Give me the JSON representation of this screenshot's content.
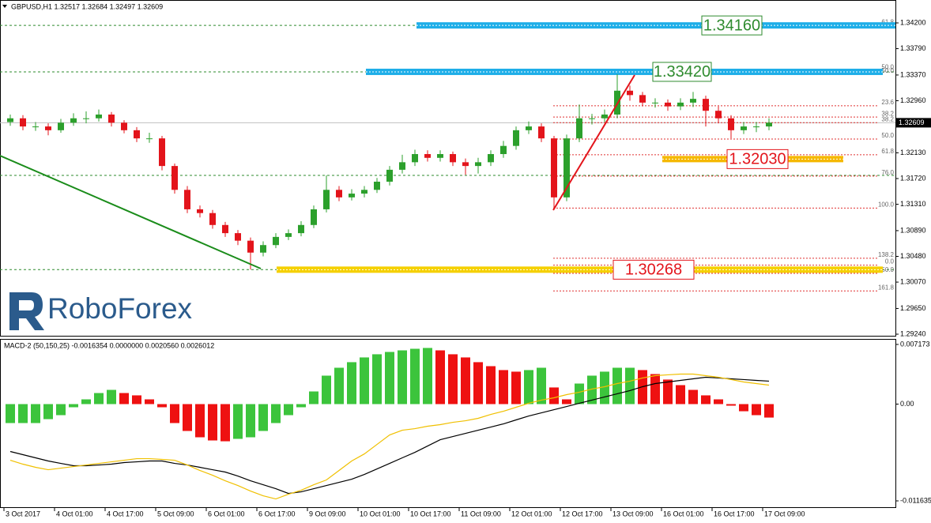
{
  "chart_data": [
    {
      "type": "candlestick",
      "title": "GBPUSD,H1  1.32517 1.32684 1.32497 1.32609",
      "watermark": "RoboForex",
      "x": [
        "3 Oct 2017",
        null,
        null,
        null,
        "4 Oct 01:00",
        null,
        null,
        null,
        "4 Oct 17:00",
        null,
        null,
        null,
        "5 Oct 09:00",
        null,
        null,
        null,
        "6 Oct 01:00",
        null,
        null,
        null,
        "6 Oct 17:00",
        null,
        null,
        null,
        "9 Oct 09:00",
        null,
        null,
        null,
        "10 Oct 01:00",
        null,
        null,
        null,
        "10 Oct 17:00",
        null,
        null,
        null,
        "11 Oct 09:00",
        null,
        null,
        null,
        "12 Oct 01:00",
        null,
        null,
        null,
        "12 Oct 17:00",
        null,
        null,
        null,
        "13 Oct 09:00",
        null,
        null,
        null,
        "16 Oct 01:00",
        null,
        null,
        null,
        "16 Oct 17:00",
        null,
        null,
        null,
        "17 Oct 09:00"
      ],
      "open": [
        1.3262,
        1.3268,
        1.3255,
        1.3255,
        1.3249,
        1.3261,
        1.3268,
        1.3268,
        1.3274,
        1.3261,
        1.3249,
        1.3236,
        1.3236,
        1.3192,
        1.3154,
        1.3123,
        1.3117,
        1.3098,
        1.3085,
        1.3073,
        1.3054,
        1.3066,
        1.3079,
        1.3085,
        1.3098,
        1.3123,
        1.3154,
        1.3142,
        1.3148,
        1.3154,
        1.3167,
        1.3186,
        1.3198,
        1.3211,
        1.3205,
        1.3211,
        1.3198,
        1.3192,
        1.3198,
        1.3211,
        1.3224,
        1.3249,
        1.3255,
        1.3236,
        1.3142,
        1.3236,
        1.3268,
        1.3268,
        1.3274,
        1.3312,
        1.3305,
        1.3293,
        1.3293,
        1.3287,
        1.3293,
        1.3299,
        1.328,
        1.3268,
        1.3249,
        1.3255,
        1.3255
      ],
      "high": [
        1.3274,
        1.3273,
        1.3262,
        1.326,
        1.3267,
        1.3276,
        1.3279,
        1.3282,
        1.3278,
        1.3265,
        1.3254,
        1.3245,
        1.324,
        1.3196,
        1.316,
        1.3129,
        1.3122,
        1.3103,
        1.309,
        1.3078,
        1.3072,
        1.3085,
        1.3091,
        1.3104,
        1.3129,
        1.3177,
        1.316,
        1.3155,
        1.316,
        1.3173,
        1.3192,
        1.321,
        1.3218,
        1.3217,
        1.3217,
        1.3215,
        1.3204,
        1.3205,
        1.3217,
        1.3232,
        1.3255,
        1.3263,
        1.326,
        1.324,
        1.3242,
        1.329,
        1.3275,
        1.3282,
        1.3338,
        1.332,
        1.331,
        1.33,
        1.3298,
        1.33,
        1.331,
        1.3304,
        1.3287,
        1.3273,
        1.3262,
        1.3262,
        1.3268
      ],
      "low": [
        1.3256,
        1.3249,
        1.3248,
        1.3241,
        1.3245,
        1.3256,
        1.326,
        1.3263,
        1.3255,
        1.3244,
        1.323,
        1.3229,
        1.3185,
        1.3148,
        1.3117,
        1.311,
        1.3092,
        1.3079,
        1.3066,
        1.3027,
        1.3048,
        1.3061,
        1.3074,
        1.308,
        1.3093,
        1.3118,
        1.3136,
        1.3137,
        1.3142,
        1.3149,
        1.3161,
        1.318,
        1.3192,
        1.3199,
        1.3199,
        1.3192,
        1.3178,
        1.318,
        1.3192,
        1.3205,
        1.3218,
        1.3243,
        1.323,
        1.3124,
        1.3136,
        1.323,
        1.3258,
        1.3262,
        1.3268,
        1.3296,
        1.3287,
        1.3285,
        1.328,
        1.3281,
        1.3286,
        1.3255,
        1.326,
        1.3236,
        1.3243,
        1.3246,
        1.3249
      ],
      "close": [
        1.3268,
        1.3255,
        1.3255,
        1.3249,
        1.3261,
        1.3268,
        1.3268,
        1.3274,
        1.3261,
        1.3249,
        1.3236,
        1.3236,
        1.3192,
        1.3154,
        1.3123,
        1.3117,
        1.3098,
        1.3085,
        1.3073,
        1.3054,
        1.3066,
        1.3079,
        1.3085,
        1.3098,
        1.3123,
        1.3154,
        1.3142,
        1.3148,
        1.3154,
        1.3167,
        1.3186,
        1.3198,
        1.3211,
        1.3205,
        1.3211,
        1.3198,
        1.3192,
        1.3198,
        1.3211,
        1.3224,
        1.3249,
        1.3255,
        1.3236,
        1.3142,
        1.3236,
        1.3268,
        1.3268,
        1.3274,
        1.3312,
        1.3305,
        1.3293,
        1.3293,
        1.3287,
        1.3293,
        1.3299,
        1.328,
        1.3268,
        1.3249,
        1.3255,
        1.3255,
        1.3261
      ],
      "up_color": "#2ca02c",
      "down_color": "#e3141b",
      "ylim": [
        1.29215,
        1.34565
      ],
      "yticks": [
        {
          "value": 1.342,
          "label": "1.34200"
        },
        {
          "value": 1.3379,
          "label": "1.33790"
        },
        {
          "value": 1.3337,
          "label": "1.33370"
        },
        {
          "value": 1.3296,
          "label": "1.32960"
        },
        {
          "value": 1.3213,
          "label": "1.32130"
        },
        {
          "value": 1.3172,
          "label": "1.31720"
        },
        {
          "value": 1.3131,
          "label": "1.31310"
        },
        {
          "value": 1.3089,
          "label": "1.30890"
        },
        {
          "value": 1.3048,
          "label": "1.30480"
        },
        {
          "value": 1.3007,
          "label": "1.30070"
        },
        {
          "value": 1.2965,
          "label": "1.29650"
        },
        {
          "value": 1.2924,
          "label": "1.29240"
        }
      ],
      "current_price": 1.32609,
      "hlines": [
        1.3416,
        1.3342,
        1.3177,
        1.3027
      ],
      "hline_color": "#2e8b2e",
      "levels": [
        {
          "value": 1.3416,
          "label": "1.34160",
          "color": "#1eaee8",
          "label_color": "#2e8b2e"
        },
        {
          "value": 1.3342,
          "label": "1.33420",
          "color": "#1eaee8",
          "label_color": "#2e8b2e"
        },
        {
          "value": 1.3203,
          "label": "1.32030",
          "color": "#f5b800",
          "label_color": "#e3141b"
        },
        {
          "value": 1.30268,
          "label": "1.30268",
          "color": "#f5d000",
          "label_color": "#e3141b"
        }
      ],
      "fib_color": "#e03030",
      "fib_levels": [
        {
          "value": 1.3416,
          "label": "61.8"
        },
        {
          "value": 1.3344,
          "label": "50.0"
        },
        {
          "value": 1.3338,
          "label": "50.0"
        },
        {
          "value": 1.3288,
          "label": "23.6"
        },
        {
          "value": 1.327,
          "label": "38.2"
        },
        {
          "value": 1.3261,
          "label": "38.2"
        },
        {
          "value": 1.3235,
          "label": "50.0"
        },
        {
          "value": 1.321,
          "label": "61.8"
        },
        {
          "value": 1.3176,
          "label": "76.0"
        },
        {
          "value": 1.3125,
          "label": "100.0"
        },
        {
          "value": 1.3045,
          "label": "138.2"
        },
        {
          "value": 1.3034,
          "label": "0.0"
        },
        {
          "value": 1.3021,
          "label": "150.0"
        },
        {
          "value": 1.2993,
          "label": "161.8"
        }
      ]
    },
    {
      "type": "macd",
      "title": "MACD-2 (50,150,25) -0.0016354 0.0000000 0.0020560 0.0026012",
      "histogram": {
        "up_color": "#3cc43c",
        "down_color": "#ee1111",
        "values": [
          -0.00228,
          -0.00228,
          -0.00228,
          -0.00181,
          -0.00133,
          -0.00038,
          0.00057,
          0.00133,
          0.00171,
          0.00133,
          0.00105,
          0.00057,
          -0.00038,
          -0.00228,
          -0.00323,
          -0.00399,
          -0.00437,
          -0.00447,
          -0.00418,
          -0.00399,
          -0.00323,
          -0.00228,
          -0.00133,
          -0.00038,
          0.00152,
          0.00342,
          0.00437,
          0.00504,
          0.00561,
          0.00599,
          0.00627,
          0.00646,
          0.00665,
          0.00675,
          0.00646,
          0.00599,
          0.00561,
          0.00504,
          0.00456,
          0.00409,
          0.0039,
          0.00409,
          0.00437,
          0.002,
          0.00057,
          0.00247,
          0.00342,
          0.0039,
          0.00437,
          0.00437,
          0.00409,
          0.00361,
          0.00295,
          0.00228,
          0.00171,
          0.00105,
          0.00057,
          -0.00019,
          -0.00086,
          -0.00133,
          -0.00162
        ]
      },
      "series": [
        {
          "color": "#000000",
          "values": [
            -0.0057,
            -0.00608,
            -0.00646,
            -0.00684,
            -0.00713,
            -0.00741,
            -0.00741,
            -0.00732,
            -0.00722,
            -0.00703,
            -0.00694,
            -0.00684,
            -0.00684,
            -0.00713,
            -0.00732,
            -0.0076,
            -0.00789,
            -0.00817,
            -0.00865,
            -0.00922,
            -0.00969,
            -0.01017,
            -0.01074,
            -0.01055,
            -0.01017,
            -0.00979,
            -0.00941,
            -0.00903,
            -0.00846,
            -0.00779,
            -0.00713,
            -0.00646,
            -0.0058,
            -0.00504,
            -0.00428,
            -0.0039,
            -0.00352,
            -0.00314,
            -0.00276,
            -0.00238,
            -0.0019,
            -0.00143,
            -0.00105,
            -0.00067,
            -0.00029,
            0.0001,
            0.00048,
            0.00086,
            0.00124,
            0.00162,
            0.00209,
            0.00247,
            0.00266,
            0.00285,
            0.00304,
            0.00323,
            0.00314,
            0.00304,
            0.00295,
            0.00285,
            0.00276
          ]
        },
        {
          "color": "#f0c000",
          "values": [
            -0.00675,
            -0.00722,
            -0.0076,
            -0.00789,
            -0.0077,
            -0.00751,
            -0.00732,
            -0.00713,
            -0.00694,
            -0.00675,
            -0.00656,
            -0.00656,
            -0.00665,
            -0.00675,
            -0.00732,
            -0.00798,
            -0.00855,
            -0.00922,
            -0.00979,
            -0.01045,
            -0.01102,
            -0.0114,
            -0.01083,
            -0.01036,
            -0.00969,
            -0.00912,
            -0.00798,
            -0.00684,
            -0.00599,
            -0.00485,
            -0.00371,
            -0.00314,
            -0.00295,
            -0.00266,
            -0.00247,
            -0.00219,
            -0.002,
            -0.00171,
            -0.00124,
            -0.00086,
            -0.00038,
            0.0001,
            0.00048,
            0.00076,
            0.00114,
            0.00143,
            0.00181,
            0.00209,
            0.00247,
            0.00276,
            0.00314,
            0.00342,
            0.00352,
            0.00361,
            0.00361,
            0.00342,
            0.00323,
            0.00295,
            0.00266,
            0.00247,
            0.00228
          ]
        }
      ],
      "ylim": [
        -0.01249,
        0.00774
      ],
      "yticks": [
        0.007173,
        {
          "value": 0,
          "label": "0.00"
        },
        -0.011635
      ]
    }
  ]
}
